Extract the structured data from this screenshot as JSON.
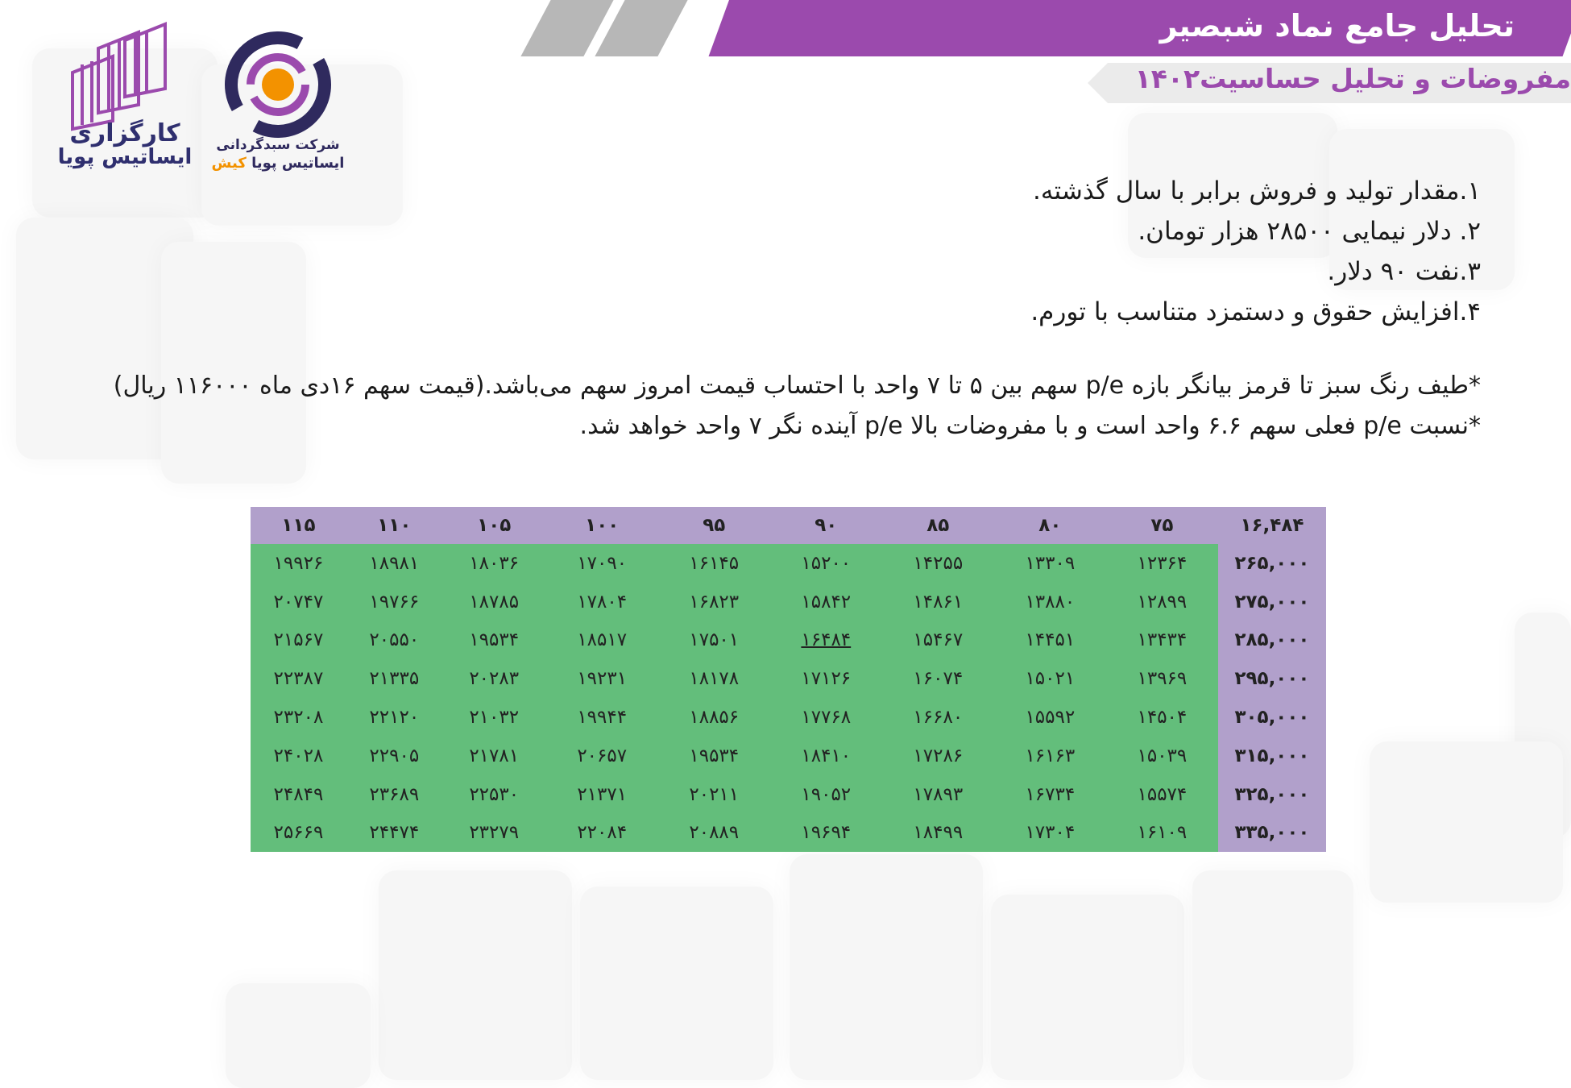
{
  "header": {
    "title": "تحلیل جامع نماد شبصیر",
    "subtitle": "مفروضات و تحلیل حساسیت۱۴۰۲"
  },
  "logos": {
    "brokerage": {
      "line1": "کارگزاری",
      "line2": "ایساتیس پویا"
    },
    "fund": {
      "line1": "شرکت سبدگردانی",
      "line2a": "ایساتیس پویا",
      "line2b": "کیش"
    }
  },
  "colors": {
    "brand_purple": "#9b4aad",
    "table_header": "#b1a0cb",
    "red": "#f8696b",
    "yellow": "#fee983",
    "green": "#63be7b"
  },
  "assumptions": [
    "۱.مقدار تولید و فروش برابر با سال گذشته.",
    "۲. دلار نیمایی ۲۸۵۰۰ هزار تومان.",
    "۳.نفت ۹۰ دلار.",
    "۴.افزایش حقوق و دستمزد متناسب با تورم."
  ],
  "notes": [
    "*طیف رنگ سبز تا قرمز بیانگر بازه p/e سهم بین ۵ تا ۷ واحد با احتساب قیمت امروز سهم می‌باشد.(قیمت سهم ۱۶دی ماه ۱۱۶۰۰۰ ریال)",
    "*نسبت p/e فعلی سهم ۶.۶ واحد است و با مفروضات بالا p/e آینده نگر ۷ واحد خواهد شد."
  ],
  "sensitivity_table": {
    "corner": "۱۶,۴۸۴",
    "columns": [
      "۷۵",
      "۸۰",
      "۸۵",
      "۹۰",
      "۹۵",
      "۱۰۰",
      "۱۰۵",
      "۱۱۰",
      "۱۱۵"
    ],
    "rows": [
      {
        "label": "۲۶۵,۰۰۰",
        "cells": [
          "۱۲۳۶۴",
          "۱۳۳۰۹",
          "۱۴۲۵۵",
          "۱۵۲۰۰",
          "۱۶۱۴۵",
          "۱۷۰۹۰",
          "۱۸۰۳۶",
          "۱۸۹۸۱",
          "۱۹۹۲۶"
        ]
      },
      {
        "label": "۲۷۵,۰۰۰",
        "cells": [
          "۱۲۸۹۹",
          "۱۳۸۸۰",
          "۱۴۸۶۱",
          "۱۵۸۴۲",
          "۱۶۸۲۳",
          "۱۷۸۰۴",
          "۱۸۷۸۵",
          "۱۹۷۶۶",
          "۲۰۷۴۷"
        ]
      },
      {
        "label": "۲۸۵,۰۰۰",
        "cells": [
          "۱۳۴۳۴",
          "۱۴۴۵۱",
          "۱۵۴۶۷",
          "۱۶۴۸۴",
          "۱۷۵۰۱",
          "۱۸۵۱۷",
          "۱۹۵۳۴",
          "۲۰۵۵۰",
          "۲۱۵۶۷"
        ]
      },
      {
        "label": "۲۹۵,۰۰۰",
        "cells": [
          "۱۳۹۶۹",
          "۱۵۰۲۱",
          "۱۶۰۷۴",
          "۱۷۱۲۶",
          "۱۸۱۷۸",
          "۱۹۲۳۱",
          "۲۰۲۸۳",
          "۲۱۳۳۵",
          "۲۲۳۸۷"
        ]
      },
      {
        "label": "۳۰۵,۰۰۰",
        "cells": [
          "۱۴۵۰۴",
          "۱۵۵۹۲",
          "۱۶۶۸۰",
          "۱۷۷۶۸",
          "۱۸۸۵۶",
          "۱۹۹۴۴",
          "۲۱۰۳۲",
          "۲۲۱۲۰",
          "۲۳۲۰۸"
        ]
      },
      {
        "label": "۳۱۵,۰۰۰",
        "cells": [
          "۱۵۰۳۹",
          "۱۶۱۶۳",
          "۱۷۲۸۶",
          "۱۸۴۱۰",
          "۱۹۵۳۴",
          "۲۰۶۵۷",
          "۲۱۷۸۱",
          "۲۲۹۰۵",
          "۲۴۰۲۸"
        ]
      },
      {
        "label": "۳۲۵,۰۰۰",
        "cells": [
          "۱۵۵۷۴",
          "۱۶۷۳۴",
          "۱۷۸۹۳",
          "۱۹۰۵۲",
          "۲۰۲۱۱",
          "۲۱۳۷۱",
          "۲۲۵۳۰",
          "۲۳۶۸۹",
          "۲۴۸۴۹"
        ]
      },
      {
        "label": "۳۳۵,۰۰۰",
        "cells": [
          "۱۶۱۰۹",
          "۱۷۳۰۴",
          "۱۸۴۹۹",
          "۱۹۶۹۴",
          "۲۰۸۸۹",
          "۲۲۰۸۴",
          "۲۳۲۷۹",
          "۲۴۴۷۴",
          "۲۵۶۶۹"
        ]
      }
    ],
    "color_scale": {
      "basis": "p/e",
      "min_pe": 5,
      "max_pe": 7,
      "price_rial": 116000
    },
    "highlighted_cell": {
      "row": 2,
      "col": 3
    }
  }
}
